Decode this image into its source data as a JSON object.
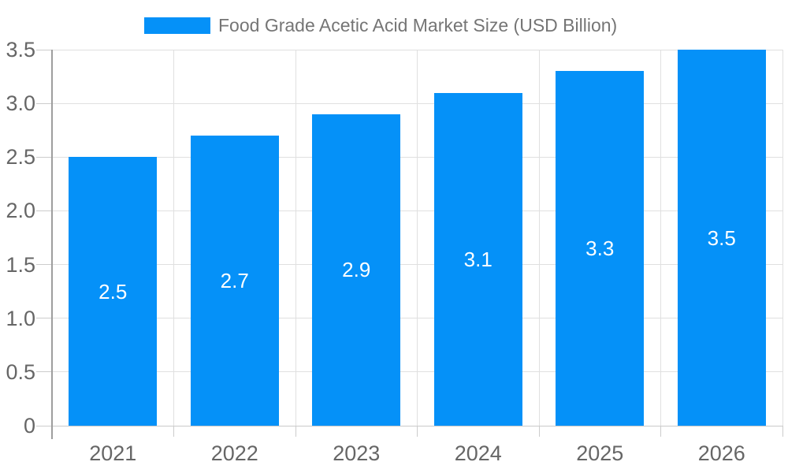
{
  "chart_data": {
    "type": "bar",
    "title": "Food Grade Acetic Acid Market Size (USD Billion)",
    "categories": [
      "2021",
      "2022",
      "2023",
      "2024",
      "2025",
      "2026"
    ],
    "values": [
      2.5,
      2.7,
      2.9,
      3.1,
      3.3,
      3.5
    ],
    "bar_labels": [
      "2.5",
      "2.7",
      "2.9",
      "3.1",
      "3.3",
      "3.5"
    ],
    "xlabel": "",
    "ylabel": "",
    "ylim": [
      0,
      3.5
    ],
    "ytick_interval": 0.5,
    "ytick_labels": [
      "0",
      "0.5",
      "1.0",
      "1.5",
      "2.0",
      "2.5",
      "3.0",
      "3.5"
    ],
    "grid": true,
    "legend_position": "top-center",
    "colors": {
      "bar": "#0591F8",
      "grid_line": "#E0E0E0",
      "zero_line": "#C9C9C9",
      "axis_line": "#9E9E9E",
      "tick_mark": "#CCCCCC",
      "axis_label_text": "#666666",
      "legend_text": "#757575",
      "bar_value_text": "#FFFFFF",
      "background": "#FFFFFF"
    }
  }
}
